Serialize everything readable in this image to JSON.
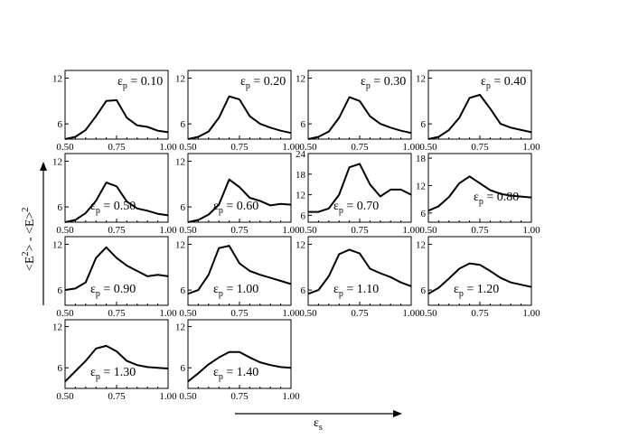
{
  "figure": {
    "ylabel": "<E²> - <E>²",
    "xlabel": "εs",
    "ylabel_parts": [
      "<E",
      "2",
      "> - <E>",
      "2"
    ],
    "xlabel_parts": [
      "ε",
      "s"
    ]
  },
  "chart_data": [
    {
      "type": "line",
      "label": "εp = 0.10",
      "label_parts": [
        "ε",
        "p",
        " = 0.10"
      ],
      "label_pos": "top-right",
      "xlim": [
        0.5,
        1.0
      ],
      "ylim": [
        4,
        13
      ],
      "xticklabels": [
        "0.50",
        "0.75",
        "1.00"
      ],
      "yticks": [
        6,
        12
      ],
      "x": [
        0.5,
        0.55,
        0.6,
        0.65,
        0.7,
        0.75,
        0.8,
        0.85,
        0.9,
        0.95,
        1.0
      ],
      "y": [
        4.0,
        4.3,
        5.2,
        7.0,
        9.0,
        9.1,
        6.8,
        5.8,
        5.6,
        5.1,
        4.9
      ]
    },
    {
      "type": "line",
      "label": "εp = 0.20",
      "label_parts": [
        "ε",
        "p",
        " = 0.20"
      ],
      "label_pos": "top-right",
      "xlim": [
        0.5,
        1.0
      ],
      "ylim": [
        4,
        13
      ],
      "xticklabels": [
        "0.50",
        "0.75",
        "1.00"
      ],
      "yticks": [
        6,
        12
      ],
      "x": [
        0.5,
        0.55,
        0.6,
        0.65,
        0.7,
        0.75,
        0.8,
        0.85,
        0.9,
        0.95,
        1.0
      ],
      "y": [
        4.0,
        4.3,
        5.0,
        6.8,
        9.6,
        9.2,
        7.0,
        6.0,
        5.5,
        5.1,
        4.8
      ]
    },
    {
      "type": "line",
      "label": "εp = 0.30",
      "label_parts": [
        "ε",
        "p",
        " = 0.30"
      ],
      "label_pos": "top-right",
      "xlim": [
        0.5,
        1.0
      ],
      "ylim": [
        4,
        13
      ],
      "xticklabels": [
        "0.50",
        "0.75",
        "1.00"
      ],
      "yticks": [
        6,
        12
      ],
      "x": [
        0.5,
        0.55,
        0.6,
        0.65,
        0.7,
        0.75,
        0.8,
        0.85,
        0.9,
        0.95,
        1.0
      ],
      "y": [
        4.0,
        4.3,
        5.0,
        6.8,
        9.5,
        9.0,
        7.0,
        6.0,
        5.5,
        5.1,
        4.8
      ]
    },
    {
      "type": "line",
      "label": "εp = 0.40",
      "label_parts": [
        "ε",
        "p",
        " = 0.40"
      ],
      "label_pos": "top-right",
      "xlim": [
        0.5,
        1.0
      ],
      "ylim": [
        4,
        13
      ],
      "xticklabels": [
        "0.50",
        "0.75",
        "1.00"
      ],
      "yticks": [
        6,
        12
      ],
      "x": [
        0.5,
        0.55,
        0.6,
        0.65,
        0.7,
        0.75,
        0.8,
        0.85,
        0.9,
        0.95,
        1.0
      ],
      "y": [
        4.0,
        4.3,
        5.2,
        6.8,
        9.4,
        9.8,
        8.0,
        6.0,
        5.5,
        5.2,
        4.9
      ]
    },
    {
      "type": "line",
      "label": "εp = 0.50",
      "label_parts": [
        "ε",
        "p",
        " = 0.50"
      ],
      "label_pos": "lower-left",
      "xlim": [
        0.5,
        1.0
      ],
      "ylim": [
        4,
        13
      ],
      "xticklabels": [
        "0.50",
        "0.75",
        "1.00"
      ],
      "yticks": [
        6,
        12
      ],
      "x": [
        0.5,
        0.55,
        0.6,
        0.65,
        0.7,
        0.75,
        0.8,
        0.85,
        0.9,
        0.95,
        1.0
      ],
      "y": [
        4.0,
        4.3,
        5.2,
        6.8,
        9.2,
        8.7,
        6.7,
        5.8,
        5.5,
        5.1,
        4.9
      ]
    },
    {
      "type": "line",
      "label": "εp = 0.60",
      "label_parts": [
        "ε",
        "p",
        " = 0.60"
      ],
      "label_pos": "lower-left",
      "xlim": [
        0.5,
        1.0
      ],
      "ylim": [
        4,
        13
      ],
      "xticklabels": [
        "0.50",
        "0.75",
        "1.00"
      ],
      "yticks": [
        6,
        12
      ],
      "x": [
        0.5,
        0.55,
        0.6,
        0.65,
        0.7,
        0.75,
        0.8,
        0.85,
        0.9,
        0.95,
        1.0
      ],
      "y": [
        4.0,
        4.3,
        5.0,
        6.3,
        9.6,
        8.6,
        7.2,
        6.8,
        6.2,
        6.4,
        6.3
      ]
    },
    {
      "type": "line",
      "label": "εp = 0.70",
      "label_parts": [
        "ε",
        "p",
        " = 0.70"
      ],
      "label_pos": "lower-left",
      "xlim": [
        0.5,
        1.0
      ],
      "ylim": [
        4,
        24
      ],
      "xticklabels": [
        "0.50",
        "0.75",
        "1.00"
      ],
      "yticks": [
        6,
        12,
        18,
        24
      ],
      "x": [
        0.5,
        0.55,
        0.6,
        0.65,
        0.7,
        0.75,
        0.8,
        0.85,
        0.9,
        0.95,
        1.0
      ],
      "y": [
        7.0,
        7.0,
        8.0,
        12.0,
        20.0,
        21.0,
        15.0,
        11.5,
        13.5,
        13.5,
        12.0
      ]
    },
    {
      "type": "line",
      "label": "εp = 0.80",
      "label_parts": [
        "ε",
        "p",
        " = 0.80"
      ],
      "label_pos": "lower-right",
      "xlim": [
        0.5,
        1.0
      ],
      "ylim": [
        4,
        19
      ],
      "xticklabels": [
        "0.50",
        "0.75",
        "1.00"
      ],
      "yticks": [
        6,
        12,
        18
      ],
      "x": [
        0.5,
        0.55,
        0.6,
        0.65,
        0.7,
        0.75,
        0.8,
        0.85,
        0.9,
        0.95,
        1.0
      ],
      "y": [
        6.5,
        7.5,
        9.5,
        12.5,
        14.0,
        12.5,
        11.0,
        10.2,
        9.8,
        9.6,
        9.4
      ]
    },
    {
      "type": "line",
      "label": "εp = 0.90",
      "label_parts": [
        "ε",
        "p",
        " = 0.90"
      ],
      "label_pos": "lower-left",
      "xlim": [
        0.5,
        1.0
      ],
      "ylim": [
        4,
        13
      ],
      "xticklabels": [
        "0.50",
        "0.75",
        "1.00"
      ],
      "yticks": [
        6,
        12
      ],
      "x": [
        0.5,
        0.55,
        0.6,
        0.65,
        0.7,
        0.75,
        0.8,
        0.85,
        0.9,
        0.95,
        1.0
      ],
      "y": [
        6.0,
        6.2,
        7.0,
        10.2,
        11.6,
        10.2,
        9.2,
        8.5,
        7.8,
        8.0,
        7.8
      ]
    },
    {
      "type": "line",
      "label": "εp = 1.00",
      "label_parts": [
        "ε",
        "p",
        " = 1.00"
      ],
      "label_pos": "lower-left",
      "xlim": [
        0.5,
        1.0
      ],
      "ylim": [
        4,
        13
      ],
      "xticklabels": [
        "0.50",
        "0.75",
        "1.00"
      ],
      "yticks": [
        6,
        12
      ],
      "x": [
        0.5,
        0.55,
        0.6,
        0.65,
        0.7,
        0.75,
        0.8,
        0.85,
        0.9,
        0.95,
        1.0
      ],
      "y": [
        5.5,
        6.0,
        8.0,
        11.5,
        11.8,
        9.5,
        8.5,
        8.0,
        7.6,
        7.2,
        6.8
      ]
    },
    {
      "type": "line",
      "label": "εp = 1.10",
      "label_parts": [
        "ε",
        "p",
        " = 1.10"
      ],
      "label_pos": "lower-left",
      "xlim": [
        0.5,
        1.0
      ],
      "ylim": [
        4,
        13
      ],
      "xticklabels": [
        "0.50",
        "0.75",
        "1.00"
      ],
      "yticks": [
        6,
        12
      ],
      "x": [
        0.5,
        0.55,
        0.6,
        0.65,
        0.7,
        0.75,
        0.8,
        0.85,
        0.9,
        0.95,
        1.0
      ],
      "y": [
        5.5,
        6.0,
        7.8,
        10.7,
        11.3,
        10.8,
        8.8,
        8.2,
        7.7,
        7.0,
        6.5
      ]
    },
    {
      "type": "line",
      "label": "εp = 1.20",
      "label_parts": [
        "ε",
        "p",
        " = 1.20"
      ],
      "label_pos": "lower-left",
      "xlim": [
        0.5,
        1.0
      ],
      "ylim": [
        4,
        13
      ],
      "xticklabels": [
        "0.50",
        "0.75",
        "1.00"
      ],
      "yticks": [
        6,
        12
      ],
      "x": [
        0.5,
        0.55,
        0.6,
        0.65,
        0.7,
        0.75,
        0.8,
        0.85,
        0.9,
        0.95,
        1.0
      ],
      "y": [
        5.5,
        6.3,
        7.5,
        8.8,
        9.5,
        9.3,
        8.5,
        7.6,
        7.0,
        6.7,
        6.4
      ]
    },
    {
      "type": "line",
      "label": "εp = 1.30",
      "label_parts": [
        "ε",
        "p",
        " = 1.30"
      ],
      "label_pos": "lower-left",
      "xlim": [
        0.5,
        1.0
      ],
      "ylim": [
        3,
        13
      ],
      "xticklabels": [
        "0.50",
        "0.75",
        "1.00"
      ],
      "yticks": [
        6,
        12
      ],
      "x": [
        0.5,
        0.55,
        0.6,
        0.65,
        0.7,
        0.75,
        0.8,
        0.85,
        0.9,
        0.95,
        1.0
      ],
      "y": [
        4.0,
        5.5,
        7.0,
        8.8,
        9.2,
        8.4,
        7.0,
        6.4,
        6.1,
        6.0,
        5.9
      ]
    },
    {
      "type": "line",
      "label": "εp = 1.40",
      "label_parts": [
        "ε",
        "p",
        " = 1.40"
      ],
      "label_pos": "lower-left",
      "xlim": [
        0.5,
        1.0
      ],
      "ylim": [
        3,
        13
      ],
      "xticklabels": [
        "0.50",
        "0.75",
        "1.00"
      ],
      "yticks": [
        6,
        12
      ],
      "x": [
        0.5,
        0.55,
        0.6,
        0.65,
        0.7,
        0.75,
        0.8,
        0.85,
        0.9,
        0.95,
        1.0
      ],
      "y": [
        4.0,
        5.2,
        6.5,
        7.5,
        8.3,
        8.3,
        7.5,
        6.8,
        6.4,
        6.1,
        6.0
      ]
    }
  ]
}
